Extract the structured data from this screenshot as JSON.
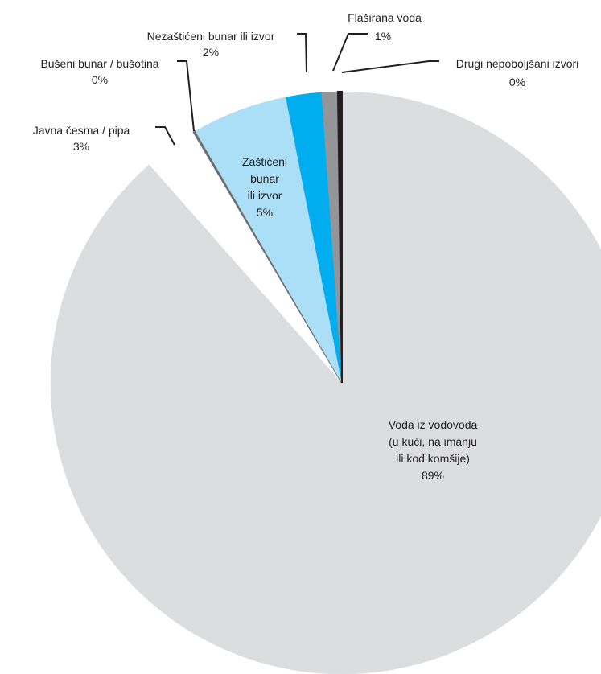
{
  "chart_data": {
    "type": "pie",
    "title": "",
    "slices": [
      {
        "label_lines": [
          "Voda iz vodovoda",
          "(u kući, na imanju",
          "ili kod komšije)"
        ],
        "value": 89,
        "pct_label": "89%",
        "color": "#dcdddf"
      },
      {
        "label_lines": [
          "Javna česma / pipa"
        ],
        "value": 3,
        "pct_label": "3%",
        "color": "#ffffff"
      },
      {
        "label_lines": [
          "Bušeni bunar / bušotina"
        ],
        "value": 0,
        "pct_label": "0%",
        "color": "#6d6e71"
      },
      {
        "label_lines": [
          "Zaštićeni",
          "bunar",
          "ili izvor"
        ],
        "value": 5,
        "pct_label": "5%",
        "color": "#abdff8"
      },
      {
        "label_lines": [
          "Nezaštićeni bunar ili izvor"
        ],
        "value": 2,
        "pct_label": "2%",
        "color": "#00aeef"
      },
      {
        "label_lines": [
          "Flaširana voda"
        ],
        "value": 1,
        "pct_label": "1%",
        "color": "#939598"
      },
      {
        "label_lines": [
          "Drugi nepoboljšani izvori"
        ],
        "value": 0,
        "pct_label": "0%",
        "color": "#231f20"
      }
    ]
  }
}
